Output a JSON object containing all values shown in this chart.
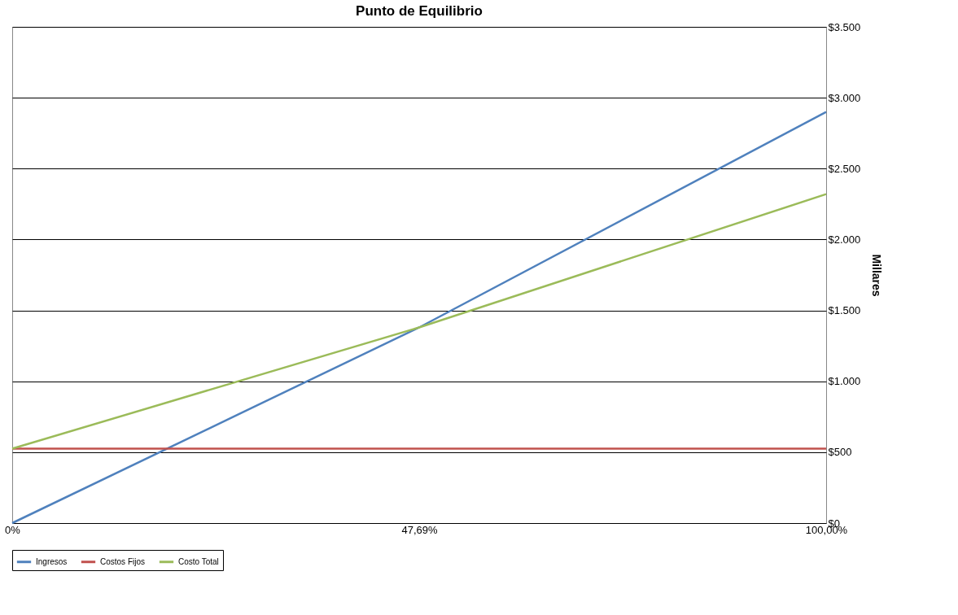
{
  "chart_data": {
    "type": "line",
    "title": "Punto de Equilibrio",
    "ylabel": "Millares",
    "categories": [
      "0%",
      "47,69%",
      "100,00%"
    ],
    "series": [
      {
        "name": "Ingresos",
        "color": "#4f81bd",
        "values": [
          0,
          1380,
          2900
        ]
      },
      {
        "name": "Costos Fijos",
        "color": "#c0504d",
        "values": [
          525,
          525,
          525
        ]
      },
      {
        "name": "Costo Total",
        "color": "#9bbb59",
        "values": [
          525,
          1380,
          2320
        ]
      }
    ],
    "ylim": [
      0,
      3500
    ],
    "yticks": [
      {
        "value": 0,
        "label": "$0"
      },
      {
        "value": 500,
        "label": "$500"
      },
      {
        "value": 1000,
        "label": "$1.000"
      },
      {
        "value": 1500,
        "label": "$1.500"
      },
      {
        "value": 2000,
        "label": "$2.000"
      },
      {
        "value": 2500,
        "label": "$2.500"
      },
      {
        "value": 3000,
        "label": "$3.000"
      },
      {
        "value": 3500,
        "label": "$3.500"
      }
    ],
    "grid": "y",
    "legend": "bottom",
    "marker": "none",
    "line_style": "solid"
  }
}
